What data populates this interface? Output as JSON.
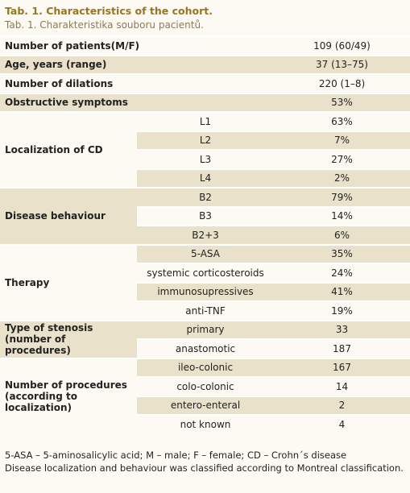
{
  "header": {
    "title": "Tab. 1. Characteristics of the cohort.",
    "subtitle": "Tab. 1. Charakteristika souboru pacientů."
  },
  "table": {
    "rows": [
      {
        "label": "Number of patients(M/F)",
        "value": "109 (60/49)"
      },
      {
        "label": "Age, years (range)",
        "value": "37 (13–75)"
      },
      {
        "label": "Number of dilations",
        "value": "220 (1–8)"
      },
      {
        "label": "Obstructive symptoms",
        "value": "53%"
      }
    ],
    "groups": [
      {
        "label": "Localization of CD",
        "items": [
          {
            "sub": "L1",
            "value": "63%"
          },
          {
            "sub": "L2",
            "value": "7%"
          },
          {
            "sub": "L3",
            "value": "27%"
          },
          {
            "sub": "L4",
            "value": "2%"
          }
        ]
      },
      {
        "label": "Disease behaviour",
        "items": [
          {
            "sub": "B2",
            "value": "79%"
          },
          {
            "sub": "B3",
            "value": "14%"
          },
          {
            "sub": "B2+3",
            "value": "6%"
          }
        ]
      },
      {
        "label": "Therapy",
        "items": [
          {
            "sub": "5-ASA",
            "value": "35%"
          },
          {
            "sub": "systemic corticosteroids",
            "value": "24%"
          },
          {
            "sub": "immunosupressives",
            "value": "41%"
          },
          {
            "sub": "anti-TNF",
            "value": "19%"
          }
        ]
      },
      {
        "label": "Type of stenosis (number of procedures)",
        "items": [
          {
            "sub": "primary",
            "value": "33"
          },
          {
            "sub": "anastomotic",
            "value": "187"
          }
        ]
      },
      {
        "label": "Number of procedures (according to localization)",
        "items": [
          {
            "sub": "ileo-colonic",
            "value": "167"
          },
          {
            "sub": "colo-colonic",
            "value": "14"
          },
          {
            "sub": "entero-enteral",
            "value": "2"
          },
          {
            "sub": "not known",
            "value": "4"
          }
        ]
      }
    ]
  },
  "footnotes": [
    "5-ASA – 5-aminosalicylic acid; M – male; F – female; CD – Crohn´s disease",
    "Disease localization and behaviour was classified according to Montreal classification."
  ]
}
